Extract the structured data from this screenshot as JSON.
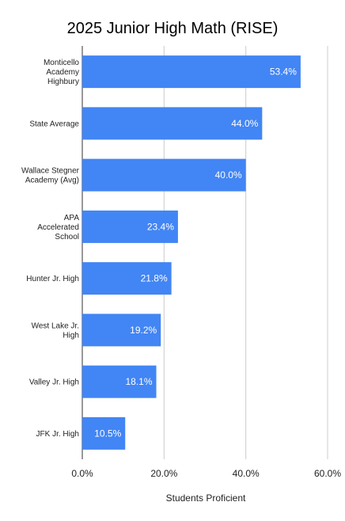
{
  "chart_data": {
    "type": "bar",
    "orientation": "horizontal",
    "title": "2025 Junior High Math (RISE)",
    "xlabel": "Students Proficient",
    "ylabel": "",
    "xlim": [
      0,
      60
    ],
    "x_ticks": [
      0,
      20,
      40,
      60
    ],
    "x_tick_labels": [
      "0.0%",
      "20.0%",
      "40.0%",
      "60.0%"
    ],
    "grid": true,
    "legend": "none",
    "bar_color": "#4285f4",
    "categories": [
      [
        "Monticello",
        "Academy",
        "Highbury"
      ],
      [
        "State Average"
      ],
      [
        "Wallace Stegner",
        "Academy (Avg)"
      ],
      [
        "APA",
        "Accelerated",
        "School"
      ],
      [
        "Hunter Jr. High"
      ],
      [
        "West Lake Jr.",
        "High"
      ],
      [
        "Valley Jr. High"
      ],
      [
        "JFK Jr. High"
      ]
    ],
    "values": [
      53.4,
      44.0,
      40.0,
      23.4,
      21.8,
      19.2,
      18.1,
      10.5
    ],
    "data_labels": [
      "53.4%",
      "44.0%",
      "40.0%",
      "23.4%",
      "21.8%",
      "19.2%",
      "18.1%",
      "10.5%"
    ]
  }
}
